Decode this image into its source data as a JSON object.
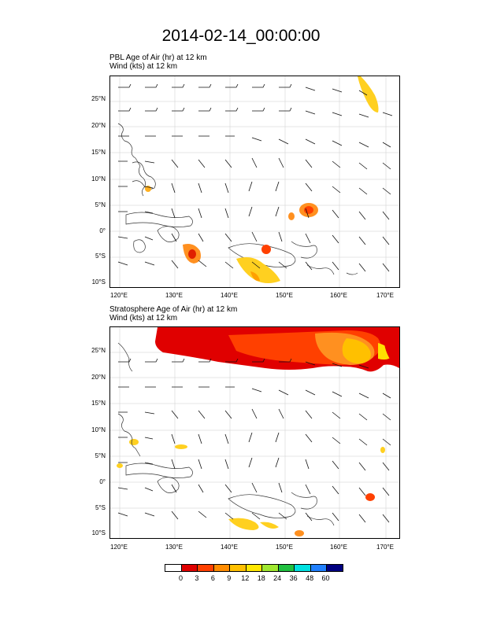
{
  "title": "2014-02-14_00:00:00",
  "panels": [
    {
      "subtitle_line1": "PBL Age of Air   (hr)     at   12 km",
      "subtitle_line2": "Wind    (kts)     at   12 km"
    },
    {
      "subtitle_line1": "Stratosphere Age of Air   (hr)     at   12 km",
      "subtitle_line2": "Wind    (kts)     at   12 km"
    }
  ],
  "lat_labels": [
    "25°N",
    "20°N",
    "15°N",
    "10°N",
    "5°N",
    "0°",
    "5°S",
    "10°S"
  ],
  "lon_labels": [
    "120°E",
    "130°E",
    "140°E",
    "150°E",
    "160°E",
    "170°E"
  ],
  "colorbar": {
    "labels": [
      "0",
      "3",
      "6",
      "9",
      "12",
      "18",
      "24",
      "36",
      "48",
      "60"
    ],
    "colors": [
      "#ffffff",
      "#e00000",
      "#ff4000",
      "#ff8c00",
      "#ffc000",
      "#ffe800",
      "#a0e830",
      "#20c040",
      "#00e0e0",
      "#2080ff",
      "#000080"
    ]
  }
}
